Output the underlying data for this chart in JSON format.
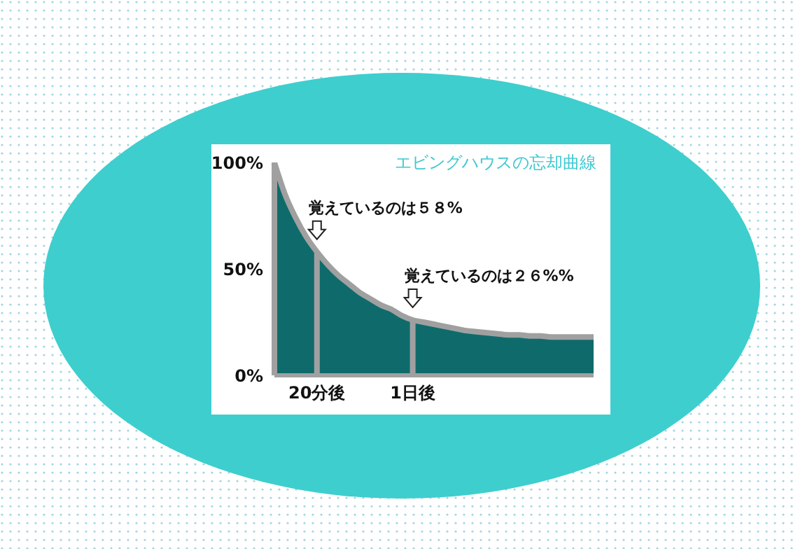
{
  "chart_data": {
    "type": "area",
    "title": "エビングハウスの忘却曲線",
    "categories": [
      null,
      null,
      null,
      null,
      "20分後",
      null,
      null,
      null,
      null,
      null,
      null,
      null,
      null,
      "1日後",
      null,
      null,
      null,
      null,
      null,
      null,
      null,
      null,
      null,
      null,
      null,
      null,
      null,
      null,
      null,
      null,
      null
    ],
    "series": [
      {
        "color": "#0f6b6b",
        "values": [
          100,
          85,
          74,
          65,
          58,
          52,
          47,
          43,
          39,
          36,
          33,
          31,
          28,
          26,
          25,
          24,
          23,
          22,
          21,
          20.5,
          20,
          19.5,
          19,
          19,
          18.5,
          18.5,
          18,
          18,
          18,
          18,
          18
        ]
      }
    ],
    "ylim": [
      0,
      100
    ],
    "yticks": [
      {
        "value": 0,
        "label": "0%"
      },
      {
        "value": 50,
        "label": "50%"
      },
      {
        "value": 100,
        "label": "100%"
      }
    ],
    "ref_lines": [
      {
        "axis": "x",
        "value": "20分後",
        "color": "#a0a0a0"
      },
      {
        "axis": "x",
        "value": "1日後",
        "color": "#a0a0a0"
      }
    ],
    "annotations": [
      {
        "text": "覚えているのは５８%",
        "x": "20分後",
        "y": 58
      },
      {
        "text": "覚えているのは２６%%",
        "x": "1日後",
        "y": 26
      }
    ],
    "legend": false
  }
}
